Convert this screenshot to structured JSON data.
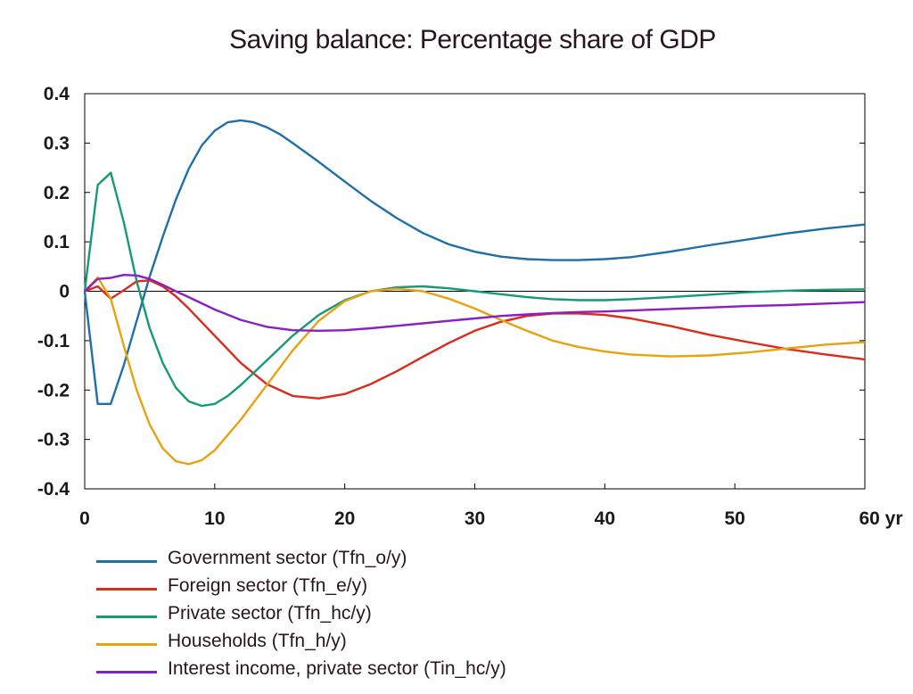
{
  "chart_data": {
    "type": "line",
    "title": "Saving balance: Percentage share of GDP",
    "xlabel": "",
    "ylabel": "",
    "x_unit": "yr",
    "xlim": [
      0,
      60
    ],
    "ylim": [
      -0.4,
      0.4
    ],
    "x_ticks": [
      0,
      10,
      20,
      30,
      40,
      50,
      60
    ],
    "y_ticks": [
      0.4,
      0.3,
      0.2,
      0.1,
      0,
      -0.1,
      -0.2,
      -0.3,
      -0.4
    ],
    "y_tick_labels": [
      "0.4",
      "0.3",
      "0.2",
      "0.1",
      "0",
      "-0.1",
      "-0.2",
      "-0.3",
      "-0.4"
    ],
    "legend_position": "bottom-left",
    "series": [
      {
        "name": "Government sector (Tfn_o/y)",
        "color": "#1f6fa8",
        "x": [
          0,
          1,
          2,
          3,
          4,
          5,
          6,
          7,
          8,
          9,
          10,
          11,
          12,
          13,
          14,
          15,
          16,
          18,
          20,
          22,
          24,
          26,
          28,
          30,
          32,
          34,
          36,
          38,
          40,
          42,
          45,
          48,
          51,
          54,
          57,
          60
        ],
        "y": [
          0,
          -0.228,
          -0.228,
          -0.15,
          -0.06,
          0.03,
          0.11,
          0.185,
          0.248,
          0.295,
          0.325,
          0.342,
          0.346,
          0.342,
          0.332,
          0.318,
          0.3,
          0.262,
          0.222,
          0.183,
          0.148,
          0.118,
          0.095,
          0.08,
          0.07,
          0.065,
          0.063,
          0.063,
          0.065,
          0.069,
          0.08,
          0.093,
          0.105,
          0.117,
          0.127,
          0.135
        ]
      },
      {
        "name": "Foreign sector (Tfn_e/y)",
        "color": "#dc2a1c",
        "x": [
          0,
          1,
          2,
          3,
          4,
          5,
          6,
          7,
          8,
          10,
          12,
          14,
          16,
          18,
          20,
          22,
          24,
          26,
          28,
          30,
          32,
          34,
          36,
          38,
          40,
          42,
          45,
          48,
          51,
          54,
          57,
          60
        ],
        "y": [
          0,
          0.01,
          -0.015,
          0.002,
          0.02,
          0.022,
          0.01,
          -0.01,
          -0.035,
          -0.09,
          -0.145,
          -0.188,
          -0.212,
          -0.217,
          -0.208,
          -0.188,
          -0.162,
          -0.133,
          -0.105,
          -0.08,
          -0.062,
          -0.05,
          -0.045,
          -0.045,
          -0.048,
          -0.055,
          -0.07,
          -0.088,
          -0.103,
          -0.117,
          -0.128,
          -0.138
        ]
      },
      {
        "name": "Private sector (Tfn_hc/y)",
        "color": "#159a78",
        "x": [
          0,
          1,
          2,
          3,
          4,
          5,
          6,
          7,
          8,
          9,
          10,
          11,
          12,
          14,
          16,
          18,
          20,
          22,
          24,
          26,
          28,
          30,
          32,
          34,
          36,
          38,
          40,
          42,
          45,
          48,
          51,
          54,
          57,
          60
        ],
        "y": [
          0,
          0.215,
          0.24,
          0.14,
          0.02,
          -0.075,
          -0.145,
          -0.195,
          -0.223,
          -0.232,
          -0.228,
          -0.212,
          -0.19,
          -0.14,
          -0.09,
          -0.048,
          -0.018,
          0.0,
          0.008,
          0.01,
          0.006,
          0.0,
          -0.006,
          -0.012,
          -0.016,
          -0.018,
          -0.018,
          -0.016,
          -0.012,
          -0.007,
          -0.002,
          0.001,
          0.003,
          0.004
        ]
      },
      {
        "name": "Households (Tfn_h/y)",
        "color": "#e8a20f",
        "x": [
          0,
          1,
          2,
          3,
          4,
          5,
          6,
          7,
          8,
          9,
          10,
          12,
          14,
          16,
          18,
          20,
          22,
          24,
          26,
          28,
          30,
          32,
          34,
          36,
          38,
          40,
          42,
          45,
          48,
          51,
          54,
          57,
          60
        ],
        "y": [
          0,
          0.028,
          -0.015,
          -0.11,
          -0.2,
          -0.27,
          -0.318,
          -0.344,
          -0.35,
          -0.342,
          -0.322,
          -0.26,
          -0.19,
          -0.12,
          -0.06,
          -0.02,
          0.0,
          0.005,
          0.0,
          -0.015,
          -0.035,
          -0.058,
          -0.08,
          -0.1,
          -0.113,
          -0.122,
          -0.128,
          -0.132,
          -0.13,
          -0.124,
          -0.116,
          -0.108,
          -0.103
        ]
      },
      {
        "name": "Interest income, private sector (Tin_hc/y)",
        "color": "#8b1fc4",
        "x": [
          0,
          1,
          2,
          3,
          4,
          5,
          6,
          7,
          8,
          10,
          12,
          14,
          16,
          18,
          20,
          22,
          24,
          26,
          28,
          30,
          32,
          34,
          36,
          38,
          40,
          42,
          45,
          48,
          51,
          54,
          57,
          60
        ],
        "y": [
          0,
          0.025,
          0.027,
          0.033,
          0.032,
          0.025,
          0.013,
          0.0,
          -0.012,
          -0.037,
          -0.058,
          -0.072,
          -0.079,
          -0.08,
          -0.079,
          -0.075,
          -0.07,
          -0.065,
          -0.06,
          -0.055,
          -0.05,
          -0.047,
          -0.044,
          -0.042,
          -0.041,
          -0.039,
          -0.036,
          -0.033,
          -0.03,
          -0.028,
          -0.025,
          -0.022
        ]
      }
    ]
  }
}
